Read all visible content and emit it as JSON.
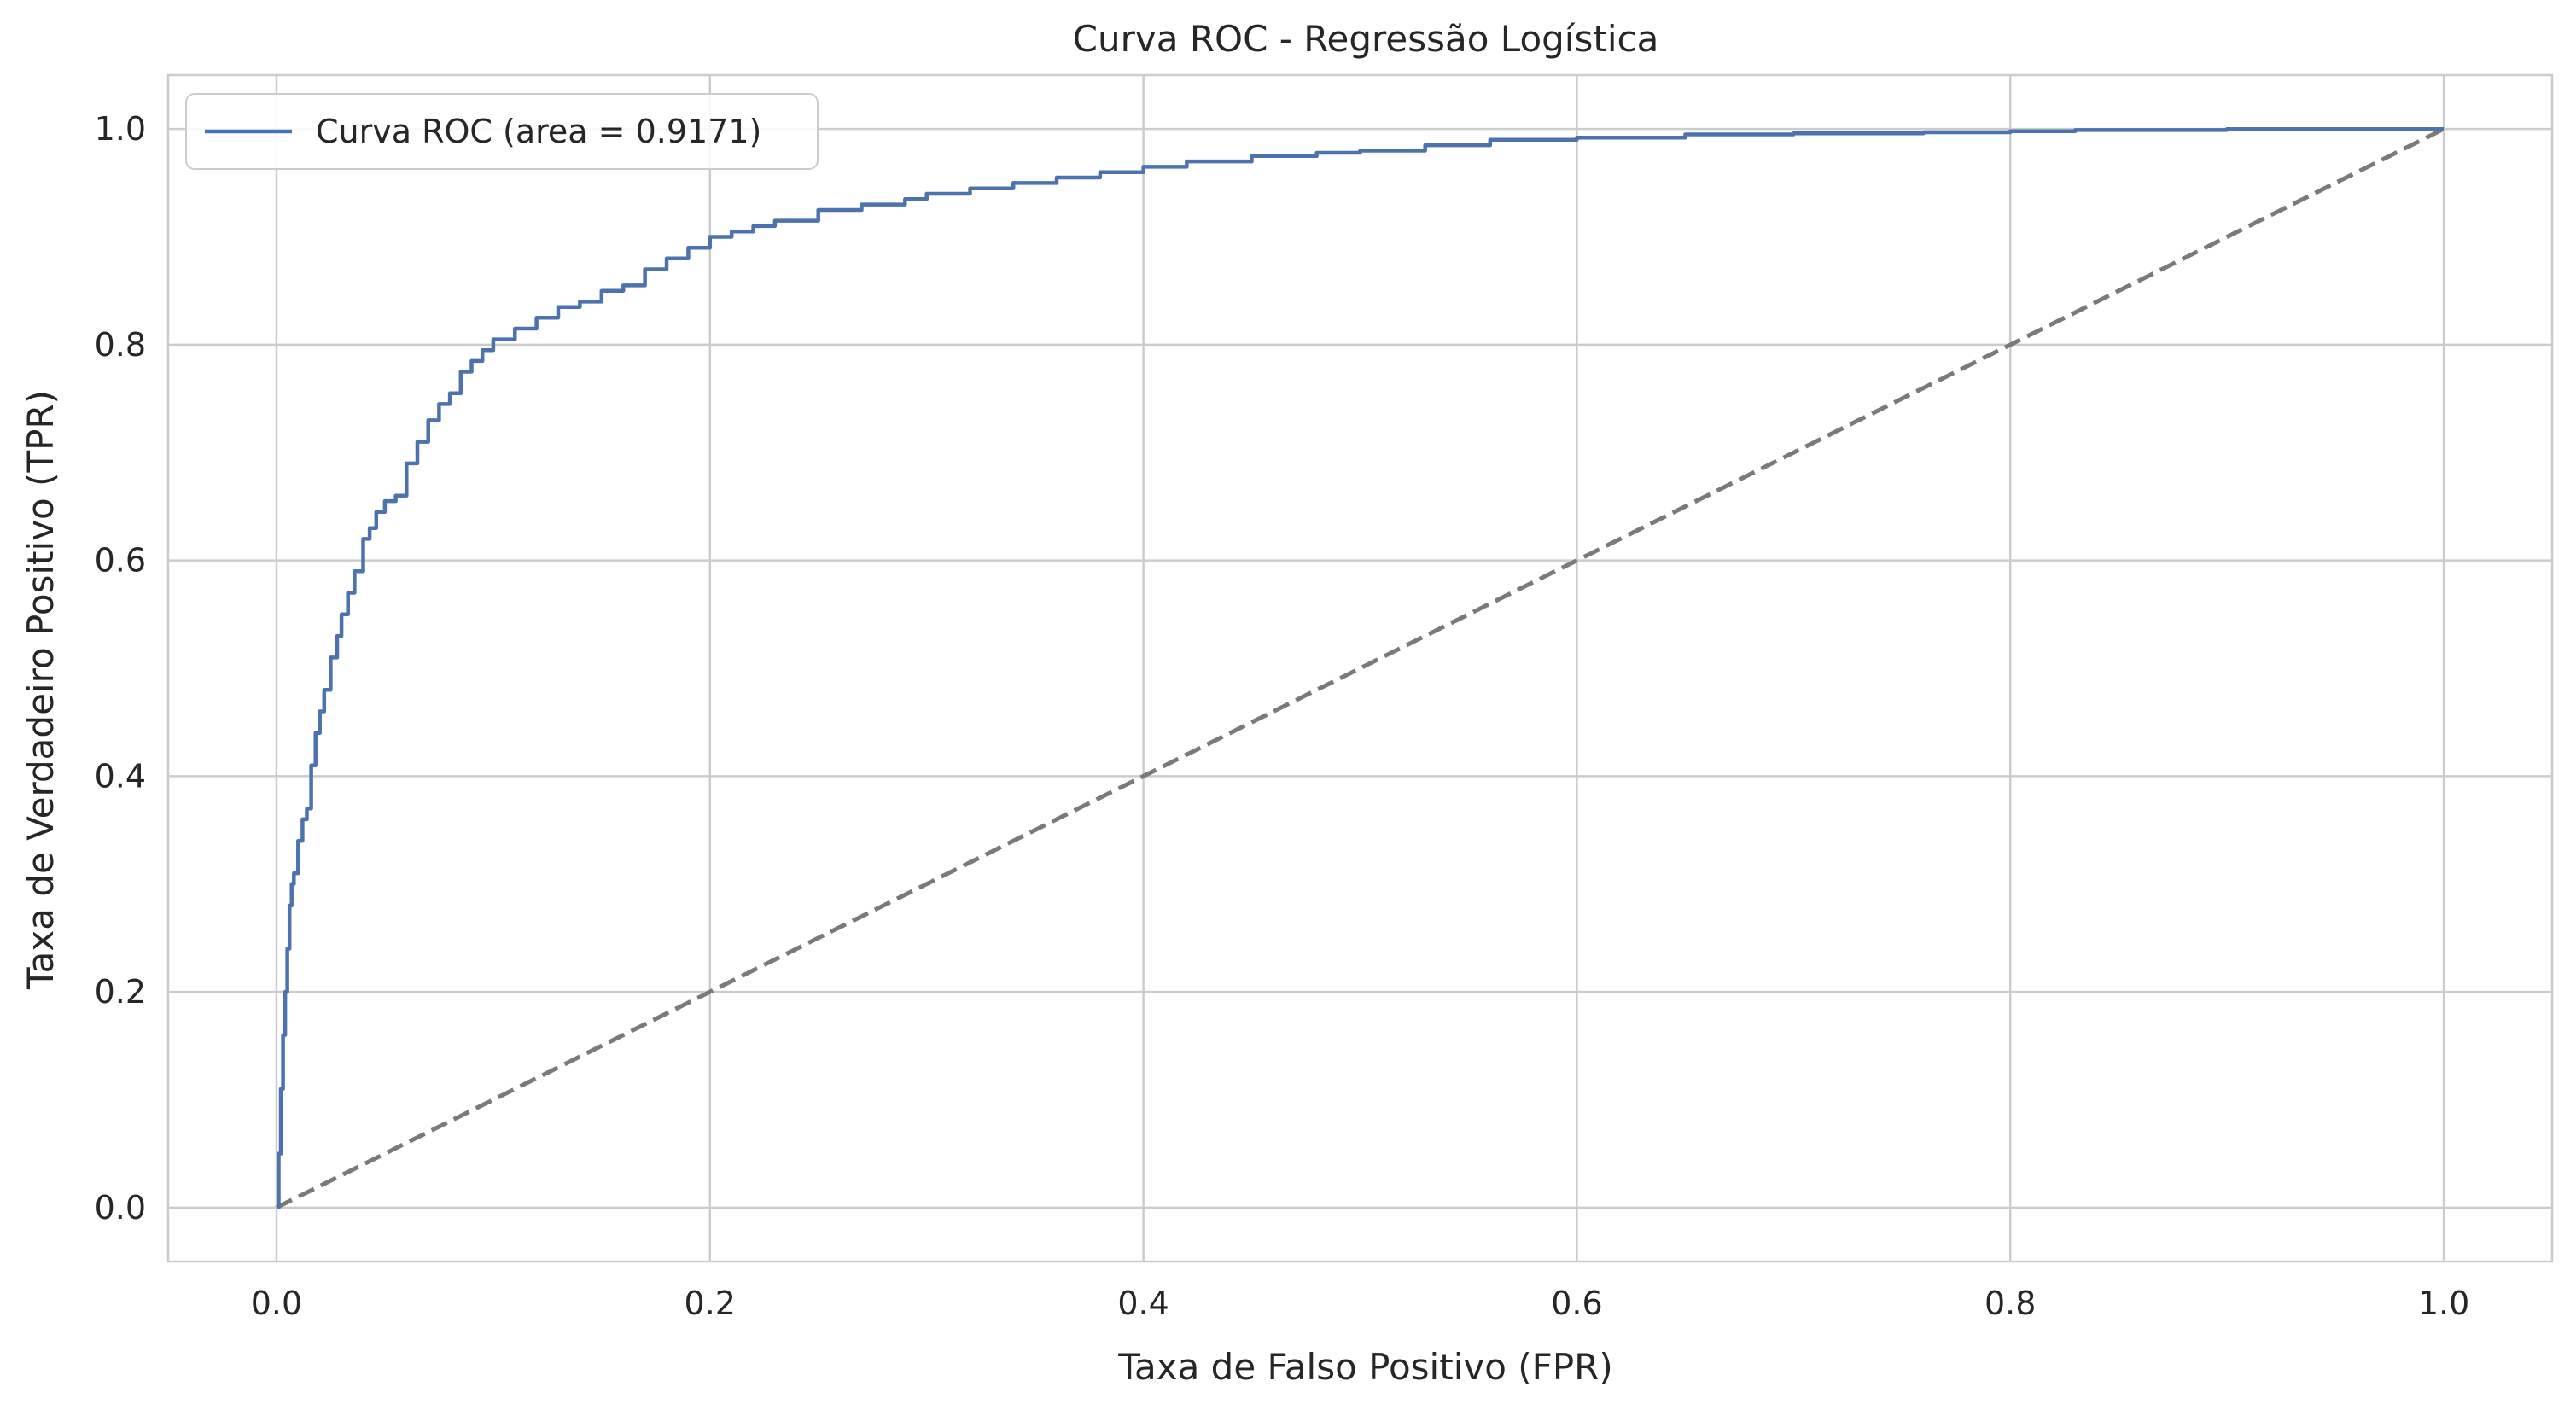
{
  "chart_data": {
    "type": "line",
    "title": "Curva ROC - Regressão Logística",
    "xlabel": "Taxa de Falso Positivo (FPR)",
    "ylabel": "Taxa de Verdadeiro Positivo (TPR)",
    "xlim": [
      -0.05,
      1.05
    ],
    "ylim": [
      -0.05,
      1.05
    ],
    "xticks": [
      0.0,
      0.2,
      0.4,
      0.6,
      0.8,
      1.0
    ],
    "xtick_labels": [
      "0.0",
      "0.2",
      "0.4",
      "0.6",
      "0.8",
      "1.0"
    ],
    "yticks": [
      0.0,
      0.2,
      0.4,
      0.6,
      0.8,
      1.0
    ],
    "ytick_labels": [
      "0.0",
      "0.2",
      "0.4",
      "0.6",
      "0.8",
      "1.0"
    ],
    "grid": true,
    "legend_position": "top-left",
    "series": [
      {
        "name": "Curva ROC (area = 0.9171)",
        "color": "#4c72b0",
        "style": "solid",
        "x": [
          0.0,
          0.001,
          0.002,
          0.003,
          0.004,
          0.005,
          0.006,
          0.007,
          0.008,
          0.01,
          0.012,
          0.014,
          0.016,
          0.018,
          0.02,
          0.022,
          0.025,
          0.028,
          0.03,
          0.033,
          0.036,
          0.04,
          0.043,
          0.046,
          0.05,
          0.055,
          0.06,
          0.065,
          0.07,
          0.075,
          0.08,
          0.085,
          0.09,
          0.095,
          0.1,
          0.11,
          0.12,
          0.13,
          0.14,
          0.15,
          0.16,
          0.17,
          0.18,
          0.19,
          0.2,
          0.21,
          0.22,
          0.23,
          0.25,
          0.27,
          0.29,
          0.3,
          0.32,
          0.34,
          0.36,
          0.38,
          0.4,
          0.42,
          0.45,
          0.48,
          0.5,
          0.53,
          0.56,
          0.6,
          0.65,
          0.7,
          0.76,
          0.8,
          0.83,
          0.9,
          1.0
        ],
        "y": [
          0.0,
          0.05,
          0.11,
          0.16,
          0.2,
          0.24,
          0.28,
          0.3,
          0.31,
          0.34,
          0.36,
          0.37,
          0.41,
          0.44,
          0.46,
          0.48,
          0.51,
          0.53,
          0.55,
          0.57,
          0.59,
          0.62,
          0.63,
          0.645,
          0.655,
          0.66,
          0.69,
          0.71,
          0.73,
          0.745,
          0.755,
          0.775,
          0.785,
          0.795,
          0.805,
          0.815,
          0.825,
          0.835,
          0.84,
          0.85,
          0.855,
          0.87,
          0.88,
          0.89,
          0.9,
          0.905,
          0.91,
          0.915,
          0.925,
          0.93,
          0.935,
          0.94,
          0.945,
          0.95,
          0.955,
          0.96,
          0.965,
          0.97,
          0.975,
          0.978,
          0.98,
          0.985,
          0.99,
          0.992,
          0.995,
          0.996,
          0.997,
          0.998,
          0.999,
          1.0,
          1.0
        ]
      },
      {
        "name": "",
        "color": "#7a7a7a",
        "style": "dashed",
        "x": [
          0.0,
          1.0
        ],
        "y": [
          0.0,
          1.0
        ]
      }
    ]
  }
}
